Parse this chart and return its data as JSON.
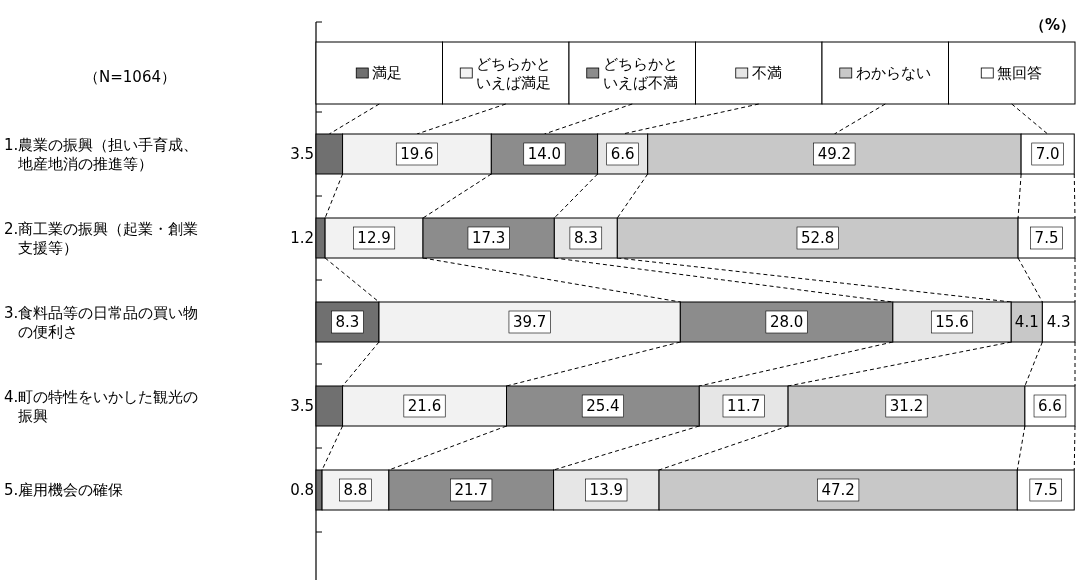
{
  "chart_data": {
    "type": "bar",
    "orientation": "horizontal",
    "stacked": true,
    "legend": "top",
    "categories": [
      "1.農業の振興（担い手育成、地産地消の推進等）",
      "2.商工業の振興（起業・創業支援等）",
      "3.食料品等の日常品の買い物の便利さ",
      "4.町の特性をいかした観光の振興",
      "5.雇用機会の確保"
    ],
    "series": [
      {
        "name": "満足",
        "color": "#707070",
        "values": [
          3.5,
          1.2,
          8.3,
          3.5,
          0.8
        ],
        "value_labels": [
          "3.5",
          "1.2",
          "8.3",
          "3.5",
          "0.8"
        ]
      },
      {
        "name": "どちらかといえば満足",
        "color": "#f2f2f2",
        "values": [
          19.6,
          12.9,
          39.7,
          21.6,
          8.8
        ],
        "value_labels": [
          "19.6",
          "12.9",
          "39.7",
          "21.6",
          "8.8"
        ]
      },
      {
        "name": "どちらかといえば不満",
        "color": "#8c8c8c",
        "values": [
          14.0,
          17.3,
          28.0,
          25.4,
          21.7
        ],
        "value_labels": [
          "14.0",
          "17.3",
          "28.0",
          "25.4",
          "21.7"
        ]
      },
      {
        "name": "不満",
        "color": "#e6e6e6",
        "values": [
          6.6,
          8.3,
          15.6,
          11.7,
          13.9
        ],
        "value_labels": [
          "6.6",
          "8.3",
          "15.6",
          "11.7",
          "13.9"
        ]
      },
      {
        "name": "わからない",
        "color": "#c8c8c8",
        "values": [
          49.2,
          52.8,
          4.1,
          31.2,
          47.2
        ],
        "value_labels": [
          "49.2",
          "52.8",
          "4.1",
          "31.2",
          "47.2"
        ]
      },
      {
        "name": "無回答",
        "color": "#ffffff",
        "values": [
          7.0,
          7.5,
          4.3,
          6.6,
          7.5
        ],
        "value_labels": [
          "7.0",
          "7.5",
          "4.3",
          "6.6",
          "7.5"
        ]
      }
    ],
    "annotations": [
      "（%）",
      "（N=1064）"
    ]
  }
}
